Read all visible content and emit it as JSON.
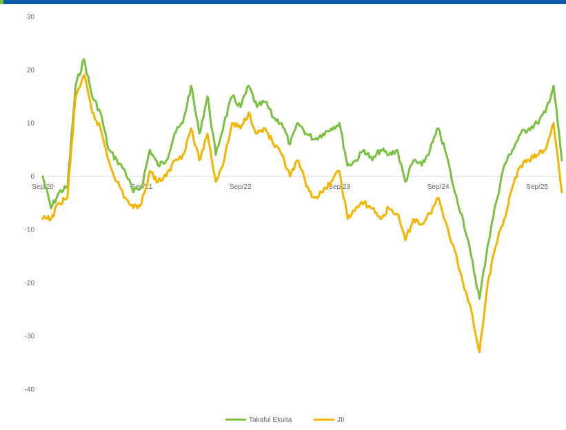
{
  "colors": {
    "header_bar": "#0a5aa8",
    "header_accent": "#7ac142",
    "zero_line": "#d9d9d9"
  },
  "chart_data": {
    "type": "line",
    "title": "",
    "xlabel": "",
    "ylabel": "",
    "ylim": [
      -40,
      30
    ],
    "y_ticks": [
      "30",
      "20",
      "10",
      "0",
      "-10",
      "-20",
      "-30",
      "-40"
    ],
    "y_tick_values": [
      30,
      20,
      10,
      0,
      -10,
      -20,
      -30,
      -40
    ],
    "x_ticks": [
      "Sep/20",
      "Sep/21",
      "Sep/22",
      "Sep/23",
      "Sep/24",
      "Sep/25"
    ],
    "x_tick_values": [
      "2020-09",
      "2021-09",
      "2022-09",
      "2023-09",
      "2024-09",
      "2025-09"
    ],
    "xlim": [
      "2020-09",
      "2025-12"
    ],
    "grid": false,
    "legend": "bottom",
    "series": [
      {
        "name": "Takaful Ekuita",
        "color": "#7ac142",
        "points": [
          [
            "2020-09",
            0
          ],
          [
            "2020-10",
            -6
          ],
          [
            "2020-11",
            -3
          ],
          [
            "2020-12",
            -2
          ],
          [
            "2021-01",
            17
          ],
          [
            "2021-02",
            22
          ],
          [
            "2021-03",
            15
          ],
          [
            "2021-04",
            12
          ],
          [
            "2021-05",
            5
          ],
          [
            "2021-06",
            3
          ],
          [
            "2021-07",
            1
          ],
          [
            "2021-08",
            -3
          ],
          [
            "2021-09",
            -2
          ],
          [
            "2021-10",
            5
          ],
          [
            "2021-11",
            2
          ],
          [
            "2021-12",
            3
          ],
          [
            "2022-01",
            8
          ],
          [
            "2022-02",
            10
          ],
          [
            "2022-03",
            17
          ],
          [
            "2022-04",
            8
          ],
          [
            "2022-05",
            15
          ],
          [
            "2022-06",
            4
          ],
          [
            "2022-07",
            10
          ],
          [
            "2022-08",
            15
          ],
          [
            "2022-09",
            13
          ],
          [
            "2022-10",
            17
          ],
          [
            "2022-11",
            13
          ],
          [
            "2022-12",
            14
          ],
          [
            "2023-01",
            11
          ],
          [
            "2023-02",
            10
          ],
          [
            "2023-03",
            6
          ],
          [
            "2023-04",
            10
          ],
          [
            "2023-05",
            8
          ],
          [
            "2023-06",
            7
          ],
          [
            "2023-07",
            8
          ],
          [
            "2023-08",
            9
          ],
          [
            "2023-09",
            10
          ],
          [
            "2023-10",
            2
          ],
          [
            "2023-11",
            3
          ],
          [
            "2023-12",
            5
          ],
          [
            "2024-01",
            3
          ],
          [
            "2024-02",
            5
          ],
          [
            "2024-03",
            4
          ],
          [
            "2024-04",
            5
          ],
          [
            "2024-05",
            -1
          ],
          [
            "2024-06",
            3
          ],
          [
            "2024-07",
            2
          ],
          [
            "2024-08",
            5
          ],
          [
            "2024-09",
            9
          ],
          [
            "2024-10",
            4
          ],
          [
            "2024-11",
            -3
          ],
          [
            "2024-12",
            -8
          ],
          [
            "2025-01",
            -15
          ],
          [
            "2025-02",
            -23
          ],
          [
            "2025-03",
            -13
          ],
          [
            "2025-04",
            -5
          ],
          [
            "2025-05",
            2
          ],
          [
            "2025-06",
            5
          ],
          [
            "2025-07",
            8
          ],
          [
            "2025-08",
            9
          ],
          [
            "2025-09",
            10
          ],
          [
            "2025-10",
            12
          ],
          [
            "2025-11",
            17
          ],
          [
            "2025-12",
            3
          ]
        ]
      },
      {
        "name": "JII",
        "color": "#f5b400",
        "points": [
          [
            "2020-09",
            -8
          ],
          [
            "2020-10",
            -8
          ],
          [
            "2020-11",
            -5
          ],
          [
            "2020-12",
            -4
          ],
          [
            "2021-01",
            15
          ],
          [
            "2021-02",
            19
          ],
          [
            "2021-03",
            12
          ],
          [
            "2021-04",
            9
          ],
          [
            "2021-05",
            3
          ],
          [
            "2021-06",
            -1
          ],
          [
            "2021-07",
            -4
          ],
          [
            "2021-08",
            -6
          ],
          [
            "2021-09",
            -5
          ],
          [
            "2021-10",
            1
          ],
          [
            "2021-11",
            -1
          ],
          [
            "2021-12",
            0
          ],
          [
            "2022-01",
            3
          ],
          [
            "2022-02",
            4
          ],
          [
            "2022-03",
            9
          ],
          [
            "2022-04",
            3
          ],
          [
            "2022-05",
            8
          ],
          [
            "2022-06",
            -1
          ],
          [
            "2022-07",
            3
          ],
          [
            "2022-08",
            10
          ],
          [
            "2022-09",
            9
          ],
          [
            "2022-10",
            12
          ],
          [
            "2022-11",
            8
          ],
          [
            "2022-12",
            9
          ],
          [
            "2023-01",
            6
          ],
          [
            "2023-02",
            4
          ],
          [
            "2023-03",
            0
          ],
          [
            "2023-04",
            3
          ],
          [
            "2023-05",
            -2
          ],
          [
            "2023-06",
            -4
          ],
          [
            "2023-07",
            -3
          ],
          [
            "2023-08",
            -1
          ],
          [
            "2023-09",
            1
          ],
          [
            "2023-10",
            -8
          ],
          [
            "2023-11",
            -6
          ],
          [
            "2023-12",
            -5
          ],
          [
            "2024-01",
            -6
          ],
          [
            "2024-02",
            -8
          ],
          [
            "2024-03",
            -6
          ],
          [
            "2024-04",
            -7
          ],
          [
            "2024-05",
            -12
          ],
          [
            "2024-06",
            -8
          ],
          [
            "2024-07",
            -9
          ],
          [
            "2024-08",
            -7
          ],
          [
            "2024-09",
            -4
          ],
          [
            "2024-10",
            -9
          ],
          [
            "2024-11",
            -14
          ],
          [
            "2024-12",
            -20
          ],
          [
            "2025-01",
            -25
          ],
          [
            "2025-02",
            -33
          ],
          [
            "2025-03",
            -20
          ],
          [
            "2025-04",
            -13
          ],
          [
            "2025-05",
            -8
          ],
          [
            "2025-06",
            -2
          ],
          [
            "2025-07",
            2
          ],
          [
            "2025-08",
            3
          ],
          [
            "2025-09",
            4
          ],
          [
            "2025-10",
            5
          ],
          [
            "2025-11",
            10
          ],
          [
            "2025-12",
            -3
          ]
        ]
      }
    ]
  }
}
